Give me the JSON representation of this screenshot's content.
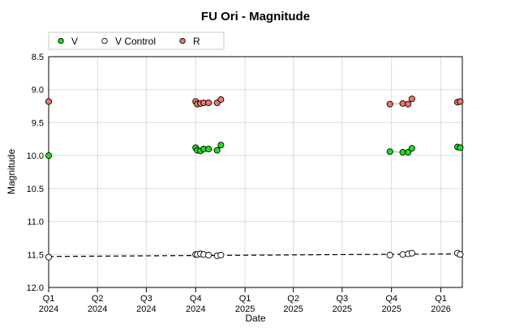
{
  "chart_data": {
    "type": "scatter",
    "title": "FU Ori - Magnitude",
    "xlabel": "Date",
    "ylabel": "Magnitude",
    "ylim": [
      8.5,
      12.0
    ],
    "y_inverted": true,
    "y_ticks": [
      "8.5",
      "9.0",
      "9.5",
      "10.0",
      "10.5",
      "11.0",
      "11.5",
      "12.0"
    ],
    "xlim": [
      "2024-01-01",
      "2026-02-10"
    ],
    "x_ticks": [
      {
        "quarter": "Q1",
        "year": "2024",
        "date": "2024-01-01"
      },
      {
        "quarter": "Q2",
        "year": "2024",
        "date": "2024-04-01"
      },
      {
        "quarter": "Q3",
        "year": "2024",
        "date": "2024-07-01"
      },
      {
        "quarter": "Q4",
        "year": "2024",
        "date": "2024-10-01"
      },
      {
        "quarter": "Q1",
        "year": "2025",
        "date": "2025-01-01"
      },
      {
        "quarter": "Q2",
        "year": "2025",
        "date": "2025-04-01"
      },
      {
        "quarter": "Q3",
        "year": "2025",
        "date": "2025-07-01"
      },
      {
        "quarter": "Q4",
        "year": "2025",
        "date": "2025-10-01"
      },
      {
        "quarter": "Q1",
        "year": "2026",
        "date": "2026-01-01"
      }
    ],
    "grid": true,
    "legend_position": "top-left",
    "series": [
      {
        "name": "V",
        "color": "#22dd22",
        "style": "markers-with-segments",
        "points": [
          {
            "x": "2024-01-01",
            "y": 10.0
          },
          {
            "x": "2024-10-01",
            "y": 9.88
          },
          {
            "x": "2024-10-04",
            "y": 9.92
          },
          {
            "x": "2024-10-10",
            "y": 9.93
          },
          {
            "x": "2024-10-16",
            "y": 9.9
          },
          {
            "x": "2024-10-25",
            "y": 9.9
          },
          {
            "x": "2024-11-10",
            "y": 9.92
          },
          {
            "x": "2024-11-17",
            "y": 9.84
          },
          {
            "x": "2025-09-28",
            "y": 9.94
          },
          {
            "x": "2025-10-22",
            "y": 9.95
          },
          {
            "x": "2025-11-01",
            "y": 9.95
          },
          {
            "x": "2025-11-08",
            "y": 9.89
          },
          {
            "x": "2026-02-01",
            "y": 9.87
          },
          {
            "x": "2026-02-06",
            "y": 9.88
          }
        ]
      },
      {
        "name": "V Control",
        "color": "#ffffff",
        "style": "markers-with-trend",
        "trend": [
          {
            "x": "2024-01-01",
            "y": 11.53
          },
          {
            "x": "2026-02-10",
            "y": 11.49
          }
        ],
        "points": [
          {
            "x": "2024-01-01",
            "y": 11.54
          },
          {
            "x": "2024-10-01",
            "y": 11.5
          },
          {
            "x": "2024-10-04",
            "y": 11.5
          },
          {
            "x": "2024-10-10",
            "y": 11.49
          },
          {
            "x": "2024-10-16",
            "y": 11.5
          },
          {
            "x": "2024-10-25",
            "y": 11.51
          },
          {
            "x": "2024-11-10",
            "y": 11.52
          },
          {
            "x": "2024-11-17",
            "y": 11.51
          },
          {
            "x": "2025-09-28",
            "y": 11.51
          },
          {
            "x": "2025-10-22",
            "y": 11.5
          },
          {
            "x": "2025-11-01",
            "y": 11.49
          },
          {
            "x": "2025-11-08",
            "y": 11.48
          },
          {
            "x": "2026-02-01",
            "y": 11.48
          },
          {
            "x": "2026-02-06",
            "y": 11.5
          }
        ]
      },
      {
        "name": "R",
        "color": "#e8786a",
        "style": "markers-with-segments",
        "points": [
          {
            "x": "2024-01-01",
            "y": 9.18
          },
          {
            "x": "2024-10-01",
            "y": 9.18
          },
          {
            "x": "2024-10-04",
            "y": 9.22
          },
          {
            "x": "2024-10-10",
            "y": 9.21
          },
          {
            "x": "2024-10-16",
            "y": 9.2
          },
          {
            "x": "2024-10-25",
            "y": 9.2
          },
          {
            "x": "2024-11-10",
            "y": 9.2
          },
          {
            "x": "2024-11-17",
            "y": 9.15
          },
          {
            "x": "2025-09-28",
            "y": 9.22
          },
          {
            "x": "2025-10-22",
            "y": 9.21
          },
          {
            "x": "2025-11-01",
            "y": 9.22
          },
          {
            "x": "2025-11-08",
            "y": 9.14
          },
          {
            "x": "2026-02-01",
            "y": 9.19
          },
          {
            "x": "2026-02-06",
            "y": 9.18
          }
        ]
      }
    ]
  }
}
